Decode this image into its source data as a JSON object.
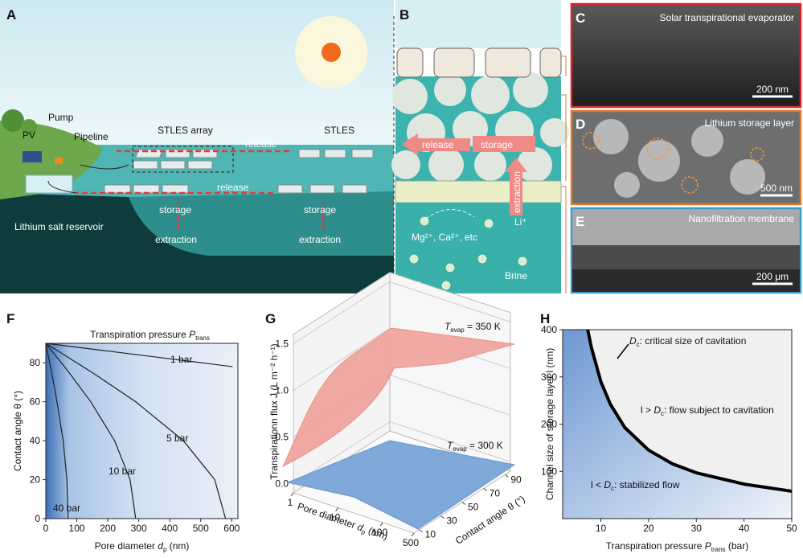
{
  "panel_a": {
    "letter": "A",
    "pump": "Pump",
    "pv": "PV",
    "pipeline": "Pipeline",
    "stles_array": "STLES array",
    "stles": "STLES",
    "release": [
      "release",
      "release"
    ],
    "storage": [
      "storage",
      "storage"
    ],
    "extraction": [
      "extraction",
      "extraction"
    ],
    "reservoir": "Lithium salt reservoir"
  },
  "panel_b": {
    "letter": "B",
    "release": "release",
    "storage": "storage",
    "extraction": "extraction",
    "li": "Li⁺",
    "ions": "Mg²⁺, Ca²⁺, etc",
    "brine": "Brine"
  },
  "panel_c": {
    "letter": "C",
    "title": "Solar transpirational evaporator",
    "scale_bar": "200 nm"
  },
  "panel_d": {
    "letter": "D",
    "title": "Lithium storage layer",
    "scale_bar": "500 nm"
  },
  "panel_e": {
    "letter": "E",
    "title": "Nanofiltration membrane",
    "scale_bar": "200 μm"
  },
  "chart_data": [
    {
      "type": "contour",
      "letter": "F",
      "title": {
        "pre": "Transpiration pressure ",
        "var": "P",
        "sub": "trans"
      },
      "x_label": {
        "pre": "Pore diameter ",
        "var": "d",
        "sub": "p",
        "post": " (nm)"
      },
      "y_label": "Contact angle θ (°)",
      "xlim": [
        0,
        620
      ],
      "ylim": [
        0,
        90
      ],
      "xticks": [
        0,
        100,
        200,
        300,
        400,
        500,
        600
      ],
      "yticks": [
        0,
        20,
        40,
        60,
        80
      ],
      "color": "#222222",
      "series": [
        {
          "name": "1 bar",
          "x": [
            0,
            101,
            202,
            353,
            504,
            603
          ],
          "y": [
            90,
            88,
            86,
            83,
            80,
            78
          ]
        },
        {
          "name": "5 bar",
          "x": [
            0,
            50,
            150,
            290,
            444,
            545,
            580
          ],
          "y": [
            90,
            85,
            75,
            60,
            40,
            20,
            0
          ]
        },
        {
          "name": "10 bar",
          "x": [
            0,
            25,
            75,
            145,
            222,
            272,
            290
          ],
          "y": [
            90,
            85,
            75,
            60,
            40,
            20,
            0
          ]
        },
        {
          "name": "40 bar",
          "x": [
            0,
            6,
            19,
            36,
            56,
            68,
            72
          ],
          "y": [
            90,
            85,
            75,
            60,
            40,
            20,
            0
          ]
        }
      ]
    },
    {
      "type": "surface3d",
      "letter": "G",
      "z_label": "Transpirationn flux J (L m⁻² h⁻¹)",
      "x_label": {
        "pre": "Pore diameter ",
        "var": "d",
        "sub": "p",
        "post": " (nm)"
      },
      "y_label": "Contact angle θ (°)",
      "xlim": [
        1,
        500
      ],
      "xscale": "log",
      "ylim": [
        5,
        95
      ],
      "zlim": [
        -0.1,
        1.6
      ],
      "xticks": [
        1,
        10,
        100,
        500
      ],
      "yticks": [
        10,
        30,
        50,
        70,
        90
      ],
      "zticks": [
        {
          "value": 0,
          "label": "0.0"
        },
        {
          "value": 0.5,
          "label": "0.5"
        },
        {
          "value": 1,
          "label": "1.0"
        },
        {
          "value": 1.5,
          "label": "1.5"
        }
      ],
      "surfaces": [
        {
          "name": {
            "var": "T",
            "sub": "evap",
            "post": " = 350 K"
          },
          "color": "#f0a39c"
        },
        {
          "name": {
            "var": "T",
            "sub": "evap",
            "post": " = 300 K"
          },
          "color": "#7ea9d9"
        }
      ]
    },
    {
      "type": "line",
      "letter": "H",
      "x_label": {
        "pre": "Transpiration pressure ",
        "var": "P",
        "sub": "trans",
        "post": " (bar)"
      },
      "y_label": "Channel size of storage layer l (nm)",
      "xlim": [
        2,
        50
      ],
      "ylim": [
        0,
        400
      ],
      "xticks": [
        10,
        20,
        30,
        40,
        50
      ],
      "yticks": [
        100,
        200,
        300,
        400
      ],
      "series": [
        {
          "name": {
            "var": "D",
            "sub": "c",
            "post": ": critical size of cavitation"
          },
          "color": "#000000",
          "x": [
            7.25,
            8,
            10,
            12,
            15,
            20,
            25,
            30,
            40,
            50
          ],
          "values": [
            400,
            363,
            290,
            242,
            193,
            145,
            116,
            97,
            73,
            58
          ]
        }
      ],
      "annotations": [
        {
          "pre": "l > ",
          "var": "D",
          "sub": "c",
          "post": ": flow subject to cavitation"
        },
        {
          "pre": "l < ",
          "var": "D",
          "sub": "c",
          "post": ": stabilized flow"
        }
      ]
    }
  ]
}
